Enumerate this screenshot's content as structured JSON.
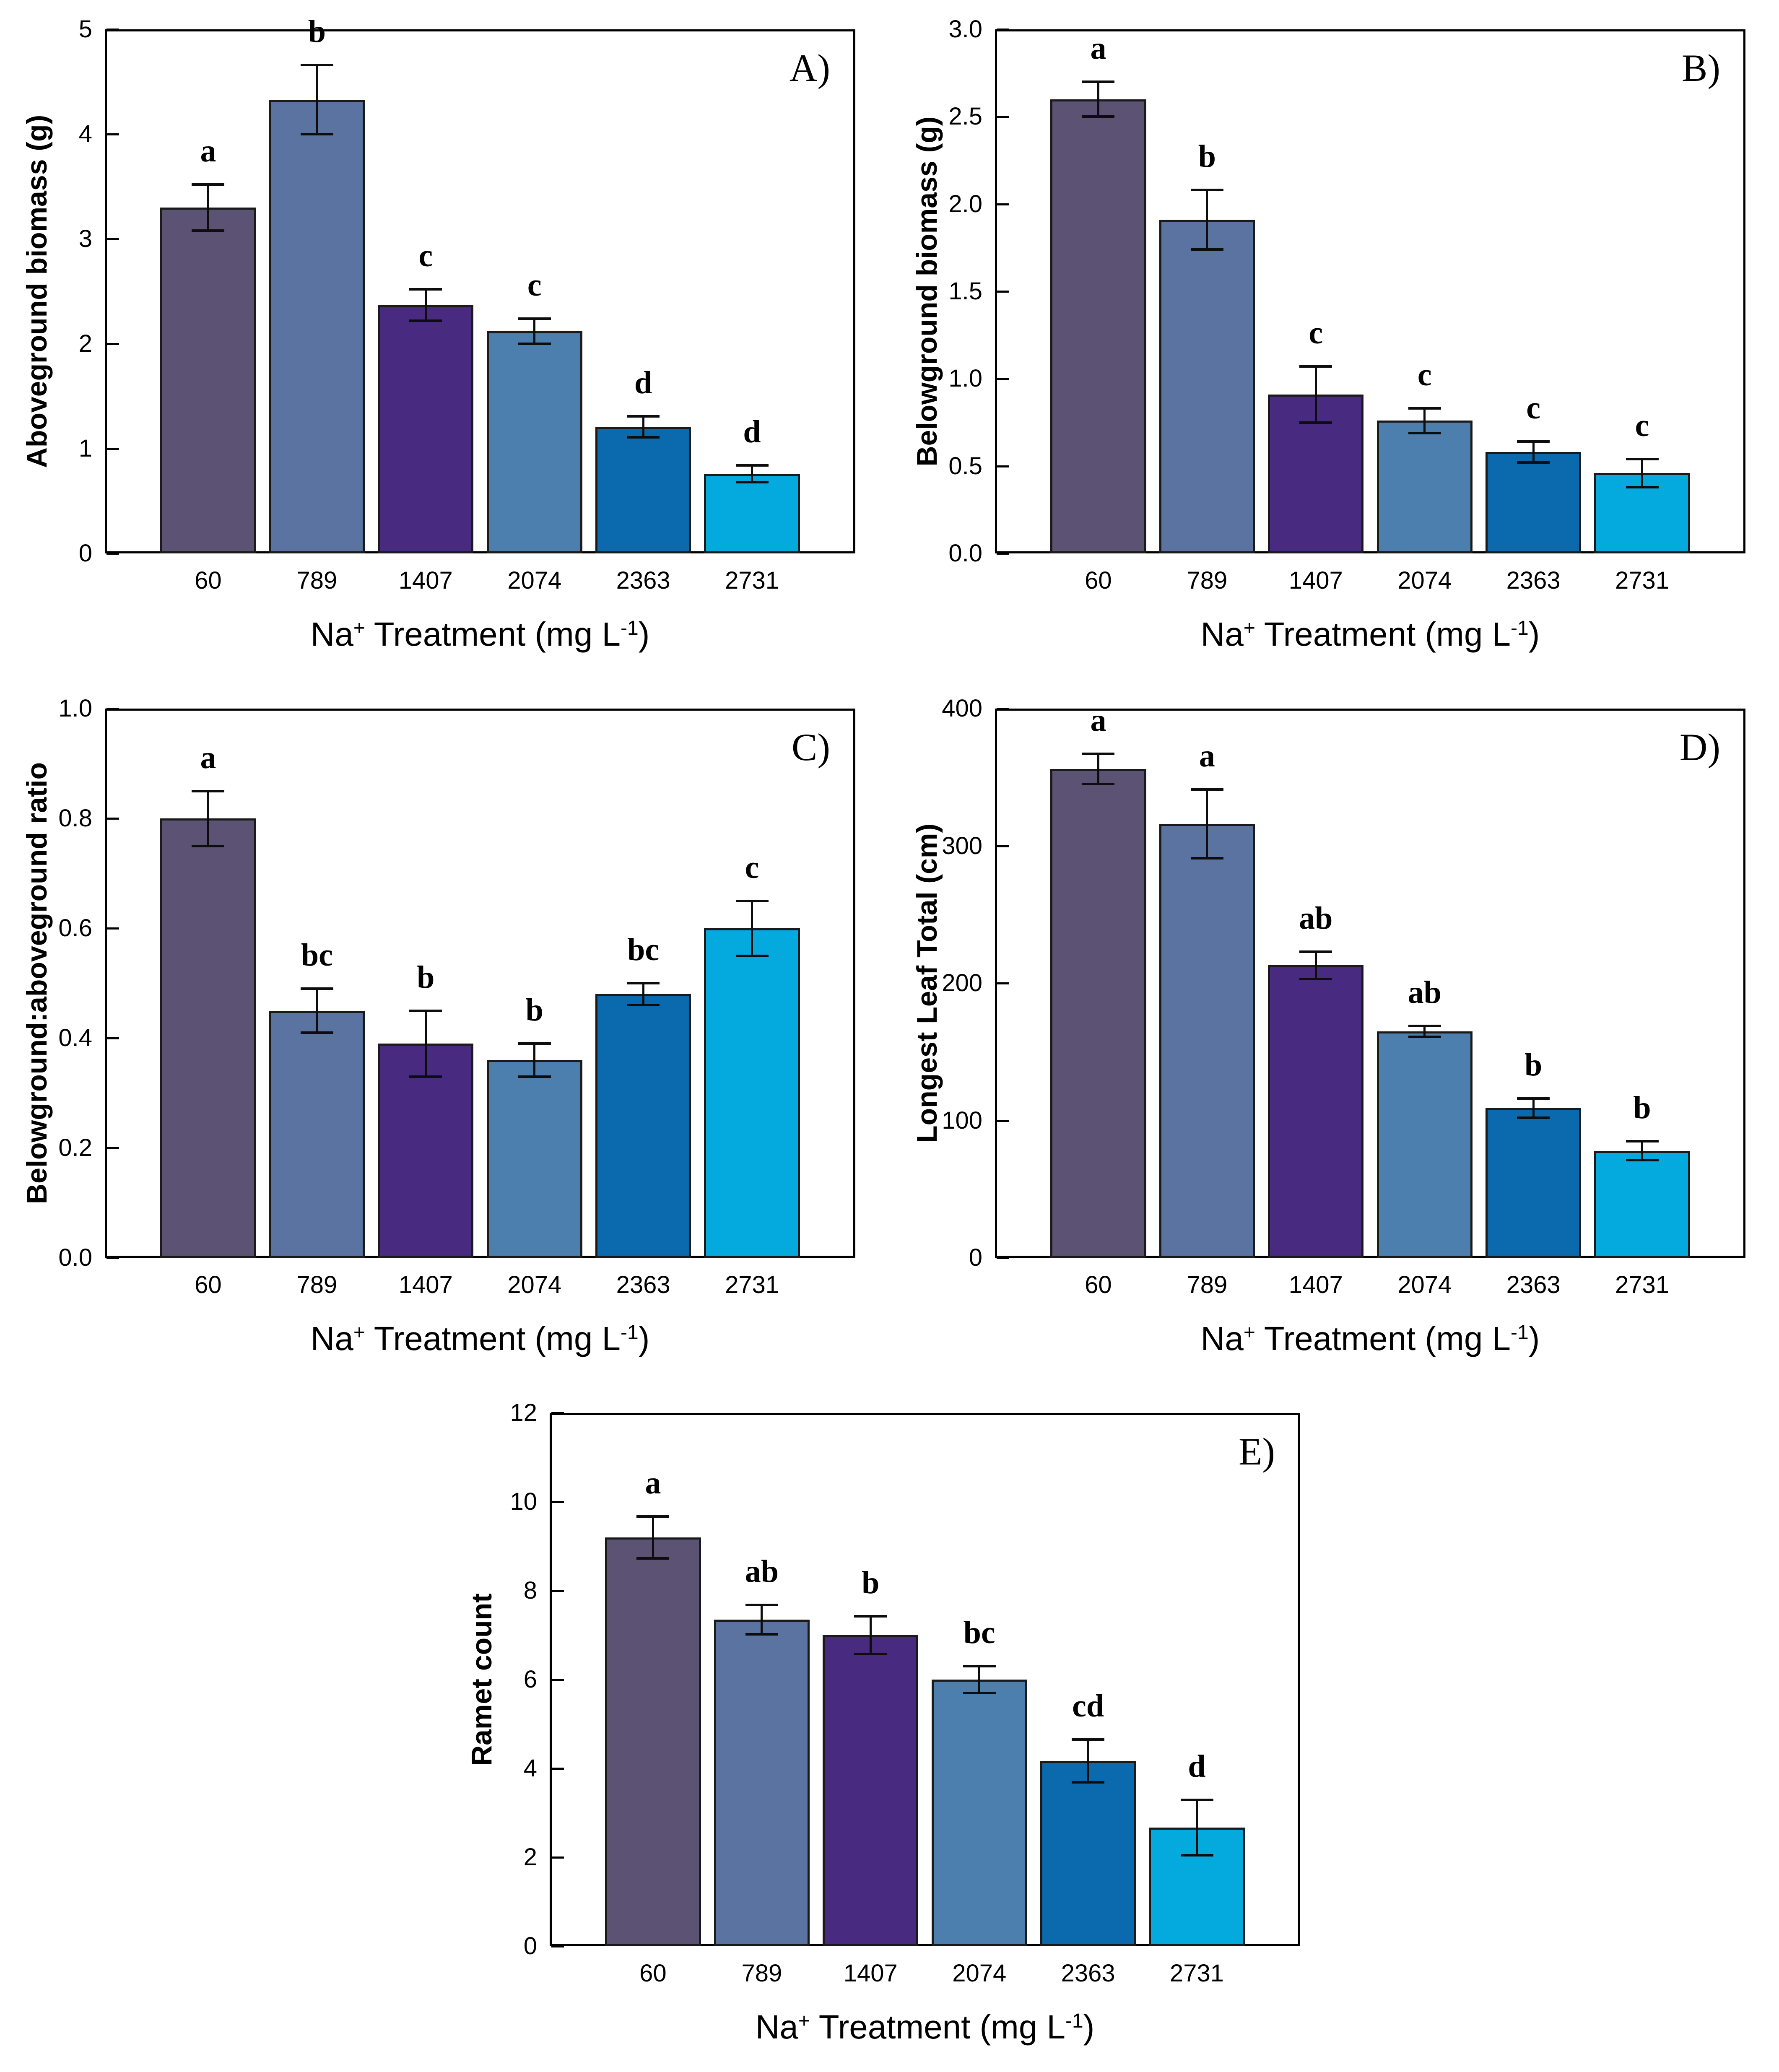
{
  "figure": {
    "background": "#ffffff",
    "text_color": "#000000",
    "bar_border_color": "#1a1a1a",
    "bar_colors": [
      "#5c5273",
      "#5b73a1",
      "#482a80",
      "#4c7fae",
      "#0b69ad",
      "#04a9dd"
    ],
    "categories": [
      "60",
      "789",
      "1407",
      "2074",
      "2363",
      "2731"
    ],
    "xlabel_parts": {
      "base": "Na",
      "sup1": "+",
      "mid": " Treatment (mg L",
      "sup2": "-1",
      "end": ")"
    }
  },
  "chart_data": [
    {
      "type": "bar",
      "id": "a",
      "panel_label": "A)",
      "title": "",
      "ylabel": "Aboveground biomass (g)",
      "xlabel": "Na+ Treatment (mg L-1)",
      "ylim": [
        0,
        5
      ],
      "grid": false,
      "yticks": [
        0,
        1,
        2,
        3,
        4,
        5
      ],
      "ytick_labels": [
        "0",
        "1",
        "2",
        "3",
        "4",
        "5"
      ],
      "categories": [
        "60",
        "789",
        "1407",
        "2074",
        "2363",
        "2731"
      ],
      "values": [
        3.3,
        4.33,
        2.37,
        2.12,
        1.21,
        0.76
      ],
      "errors": [
        0.22,
        0.33,
        0.15,
        0.12,
        0.1,
        0.08
      ],
      "sig_letters": [
        "a",
        "b",
        "c",
        "c",
        "d",
        "d"
      ]
    },
    {
      "type": "bar",
      "id": "b",
      "panel_label": "B)",
      "title": "",
      "ylabel": "Belowground biomass (g)",
      "xlabel": "Na+ Treatment (mg L-1)",
      "ylim": [
        0,
        3
      ],
      "grid": false,
      "yticks": [
        0,
        0.5,
        1.0,
        1.5,
        2.0,
        2.5,
        3.0
      ],
      "ytick_labels": [
        "0.0",
        "0.5",
        "1.0",
        "1.5",
        "2.0",
        "2.5",
        "3.0"
      ],
      "categories": [
        "60",
        "789",
        "1407",
        "2074",
        "2363",
        "2731"
      ],
      "values": [
        2.6,
        1.91,
        0.91,
        0.76,
        0.58,
        0.46
      ],
      "errors": [
        0.1,
        0.17,
        0.16,
        0.07,
        0.06,
        0.08
      ],
      "sig_letters": [
        "a",
        "b",
        "c",
        "c",
        "c",
        "c"
      ]
    },
    {
      "type": "bar",
      "id": "c",
      "panel_label": "C)",
      "title": "",
      "ylabel": "Belowground:aboveground ratio",
      "xlabel": "Na+ Treatment (mg L-1)",
      "ylim": [
        0,
        1
      ],
      "grid": false,
      "yticks": [
        0,
        0.2,
        0.4,
        0.6,
        0.8,
        1.0
      ],
      "ytick_labels": [
        "0.0",
        "0.2",
        "0.4",
        "0.6",
        "0.8",
        "1.0"
      ],
      "categories": [
        "60",
        "789",
        "1407",
        "2074",
        "2363",
        "2731"
      ],
      "values": [
        0.8,
        0.45,
        0.39,
        0.36,
        0.48,
        0.6
      ],
      "errors": [
        0.05,
        0.04,
        0.06,
        0.03,
        0.02,
        0.05
      ],
      "sig_letters": [
        "a",
        "bc",
        "b",
        "b",
        "bc",
        "c"
      ]
    },
    {
      "type": "bar",
      "id": "d",
      "panel_label": "D)",
      "title": "",
      "ylabel": "Longest Leaf Total (cm)",
      "xlabel": "Na+ Treatment (mg L-1)",
      "ylim": [
        0,
        400
      ],
      "grid": false,
      "yticks": [
        0,
        100,
        200,
        300,
        400
      ],
      "ytick_labels": [
        "0",
        "100",
        "200",
        "300",
        "400"
      ],
      "categories": [
        "60",
        "789",
        "1407",
        "2074",
        "2363",
        "2731"
      ],
      "values": [
        356,
        316,
        213,
        165,
        109,
        78
      ],
      "errors": [
        11,
        25,
        10,
        4,
        7,
        7
      ],
      "sig_letters": [
        "a",
        "a",
        "ab",
        "ab",
        "b",
        "b"
      ]
    },
    {
      "type": "bar",
      "id": "e",
      "panel_label": "E)",
      "title": "",
      "ylabel": "Ramet count",
      "xlabel": "Na+ Treatment (mg L-1)",
      "ylim": [
        0,
        12
      ],
      "grid": false,
      "yticks": [
        0,
        2,
        4,
        6,
        8,
        10,
        12
      ],
      "ytick_labels": [
        "0",
        "2",
        "4",
        "6",
        "8",
        "10",
        "12"
      ],
      "categories": [
        "60",
        "789",
        "1407",
        "2074",
        "2363",
        "2731"
      ],
      "values": [
        9.2,
        7.35,
        7.0,
        6.0,
        4.17,
        2.67
      ],
      "errors": [
        0.47,
        0.33,
        0.42,
        0.3,
        0.48,
        0.62
      ],
      "sig_letters": [
        "a",
        "ab",
        "b",
        "bc",
        "cd",
        "d"
      ]
    }
  ]
}
